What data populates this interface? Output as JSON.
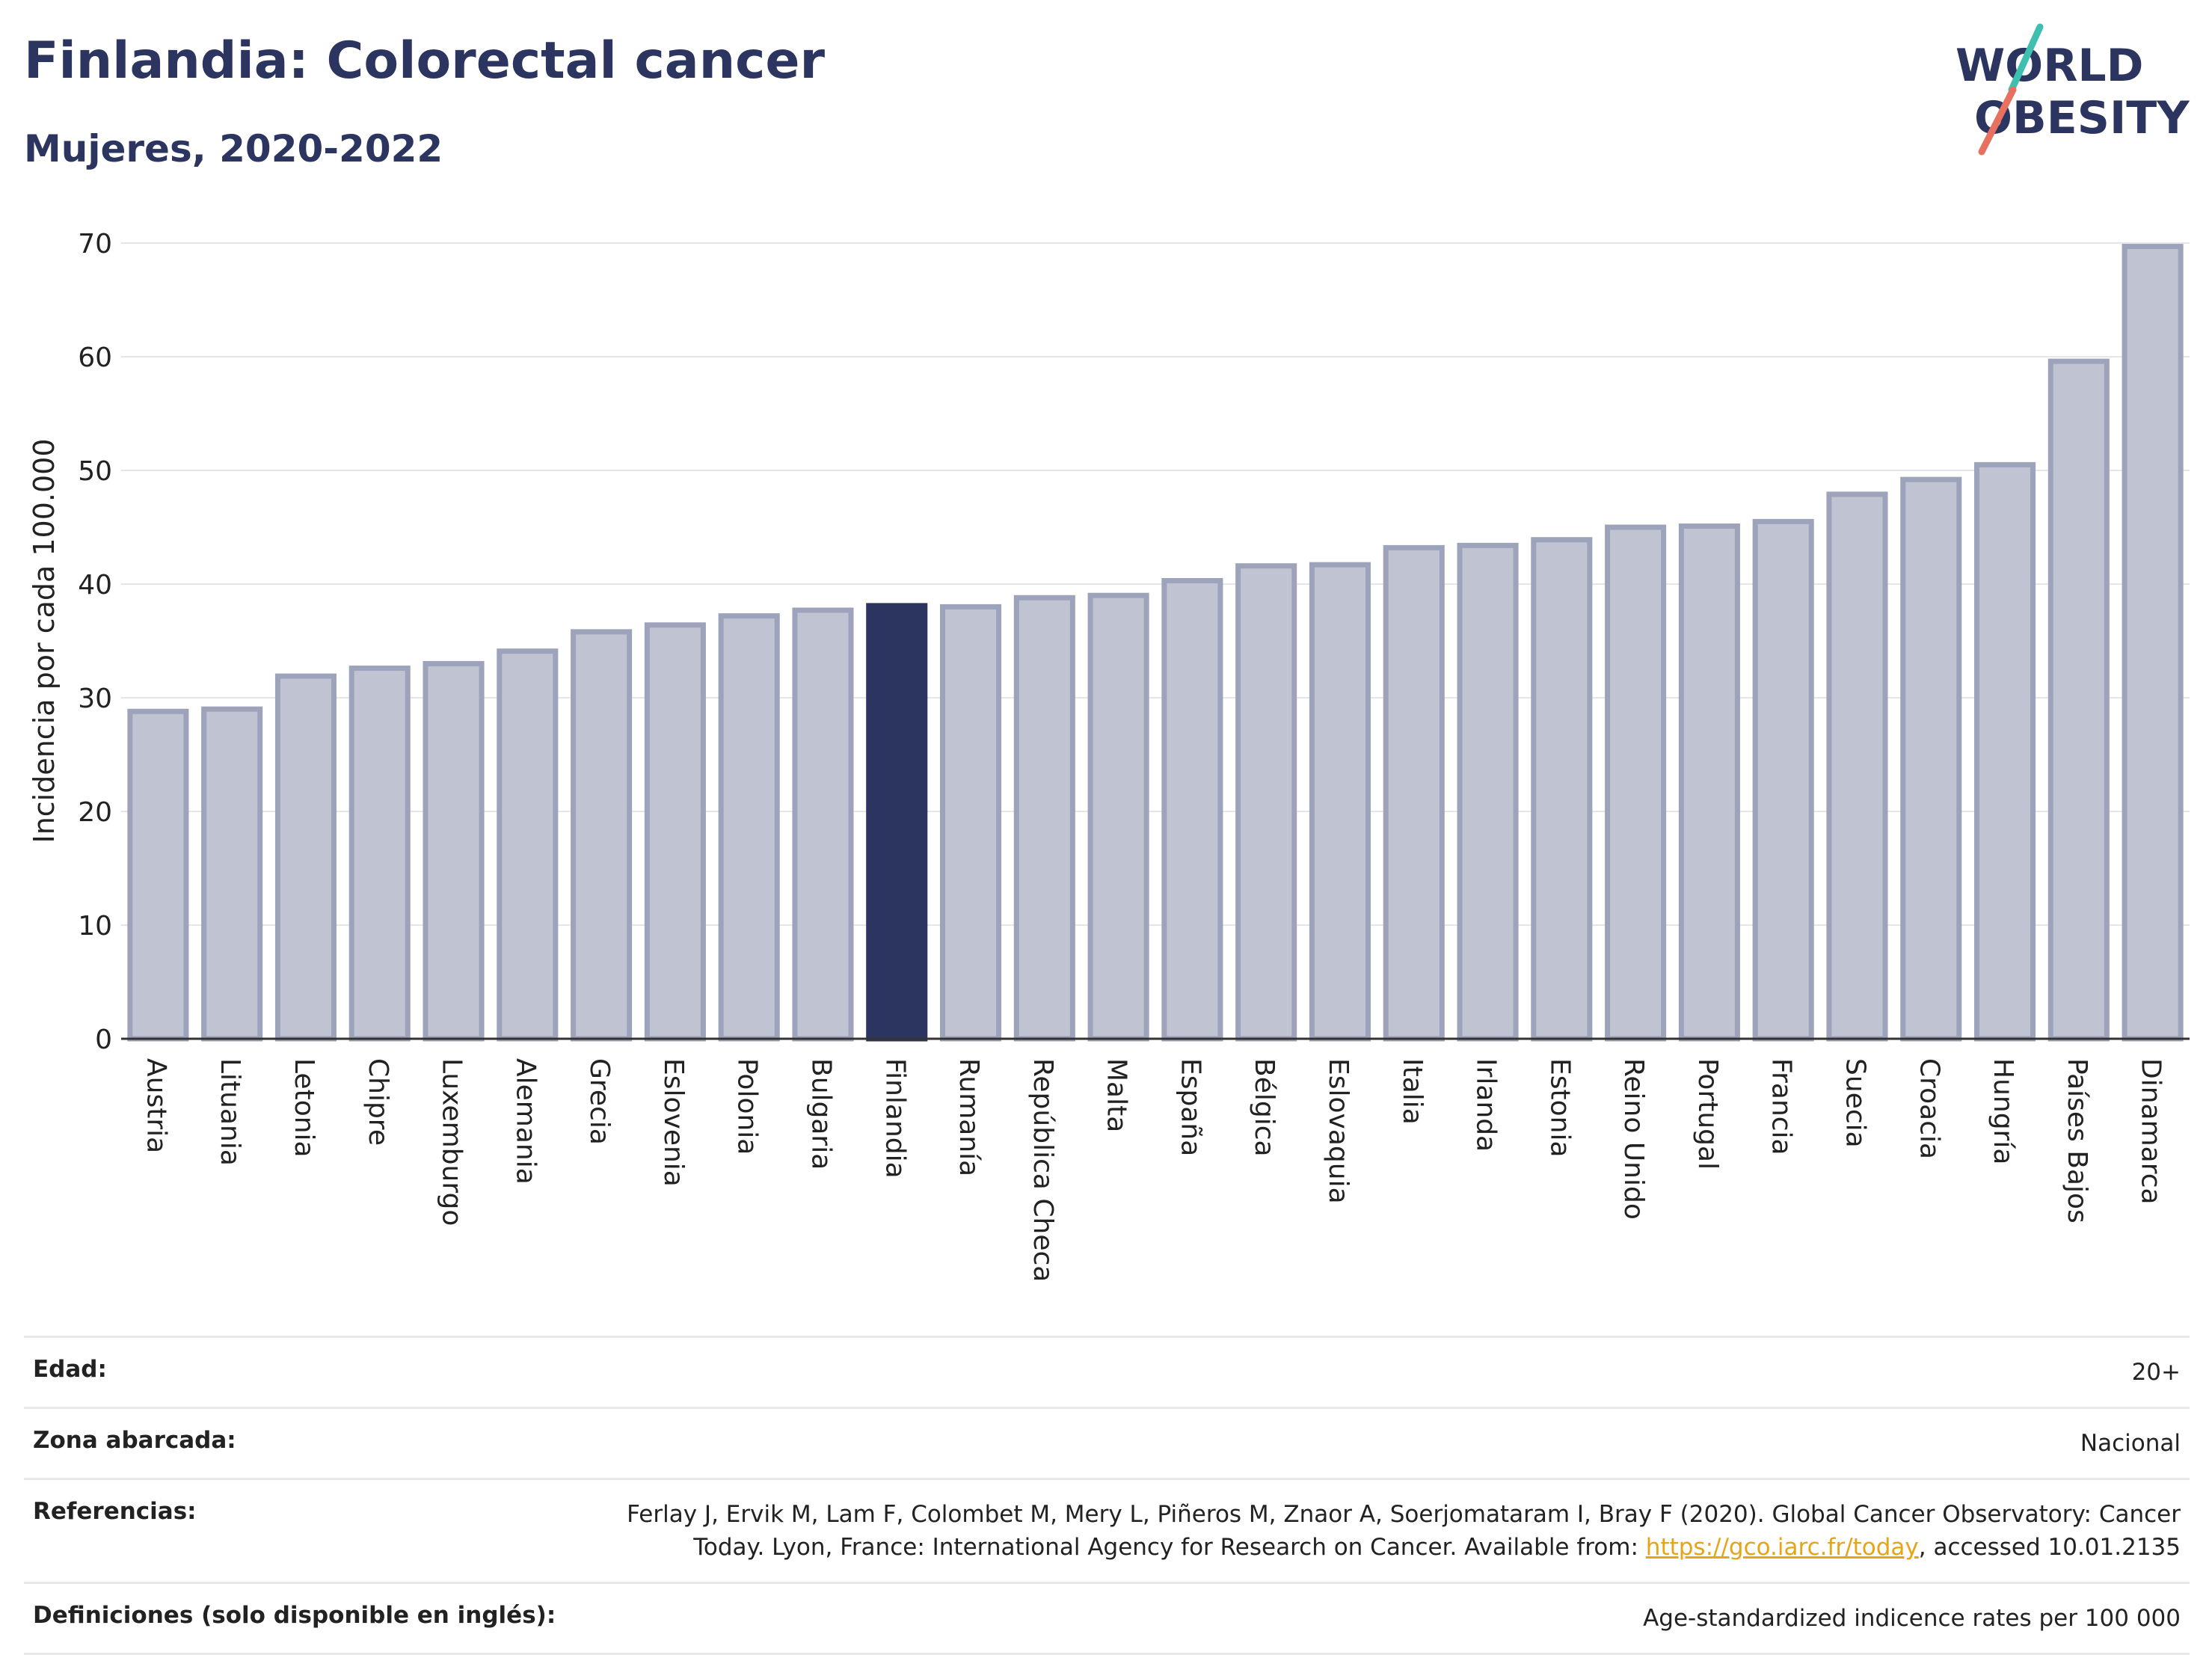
{
  "header": {
    "title": "Finlandia: Colorectal cancer",
    "subtitle": "Mujeres, 2020-2022"
  },
  "logo": {
    "line1": "WORLD",
    "line2": "OBESITY"
  },
  "colors": {
    "bar": "#c0c3d1",
    "bar_edge": "#9da3ba",
    "highlight": "#2b3560",
    "text": "#2b3560",
    "grid": "#e5e5ea"
  },
  "chart_data": {
    "type": "bar",
    "ylabel": "Incidencia por cada 100.000",
    "xlabel": "",
    "ylim": [
      0,
      70
    ],
    "yticks": [
      0,
      10,
      20,
      30,
      40,
      50,
      60,
      70
    ],
    "grid": true,
    "highlight": "Finlandia",
    "categories": [
      "Austria",
      "Lituania",
      "Letonia",
      "Chipre",
      "Luxemburgo",
      "Alemania",
      "Grecia",
      "Eslovenia",
      "Polonia",
      "Bulgaria",
      "Finlandia",
      "Rumanía",
      "República Checa",
      "Malta",
      "España",
      "Bélgica",
      "Eslovaquia",
      "Italia",
      "Irlanda",
      "Estonia",
      "Reino Unido",
      "Portugal",
      "Francia",
      "Suecia",
      "Croacia",
      "Hungría",
      "Países Bajos",
      "Dinamarca"
    ],
    "values": [
      28.8,
      29.0,
      31.9,
      32.6,
      33.0,
      34.1,
      35.8,
      36.4,
      37.2,
      37.7,
      38.1,
      38.0,
      38.8,
      39.0,
      40.3,
      41.6,
      41.7,
      43.2,
      43.4,
      43.9,
      45.0,
      45.1,
      45.5,
      47.9,
      49.2,
      50.5,
      59.6,
      69.7
    ]
  },
  "info": [
    {
      "label": "Edad:",
      "value": "20+"
    },
    {
      "label": "Zona abarcada:",
      "value": "Nacional"
    },
    {
      "label": "Referencias:",
      "value_before": "Ferlay J, Ervik M, Lam F, Colombet M, Mery L, Piñeros M, Znaor A, Soerjomataram I, Bray F (2020). Global Cancer Observatory: Cancer Today. Lyon, France: International Agency for Research on Cancer. Available from: ",
      "link": "https://gco.iarc.fr/today",
      "value_after": ", accessed 10.01.2135"
    },
    {
      "label": "Definiciones (solo disponible en inglés):",
      "value": "Age-standardized indicence rates per 100 000"
    }
  ]
}
